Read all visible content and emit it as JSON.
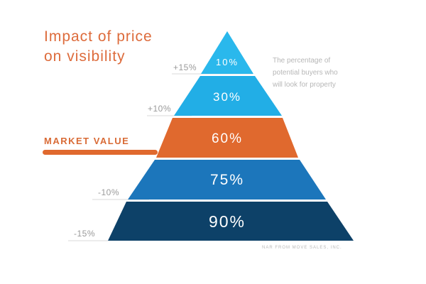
{
  "title": {
    "line1": "Impact of price",
    "line2": "on visibility"
  },
  "caption": {
    "line1": "The percentage of",
    "line2": "potential buyers who",
    "line3": "will look for property"
  },
  "source": "NAR FROM MOVE SALES, INC.",
  "market_value_label": "MARKET VALUE",
  "tiers": [
    {
      "value": "10%",
      "side_label": "+15%",
      "color": "#2ab8ec"
    },
    {
      "value": "30%",
      "side_label": "+10%",
      "color": "#22aee6"
    },
    {
      "value": "60%",
      "side_label": "",
      "color": "#e0692e"
    },
    {
      "value": "75%",
      "side_label": "-10%",
      "color": "#1c76bb"
    },
    {
      "value": "90%",
      "side_label": "-15%",
      "color": "#0d4168"
    }
  ],
  "colors": {
    "accent": "#dd6b3b",
    "leader_line": "#d8d8d8"
  }
}
